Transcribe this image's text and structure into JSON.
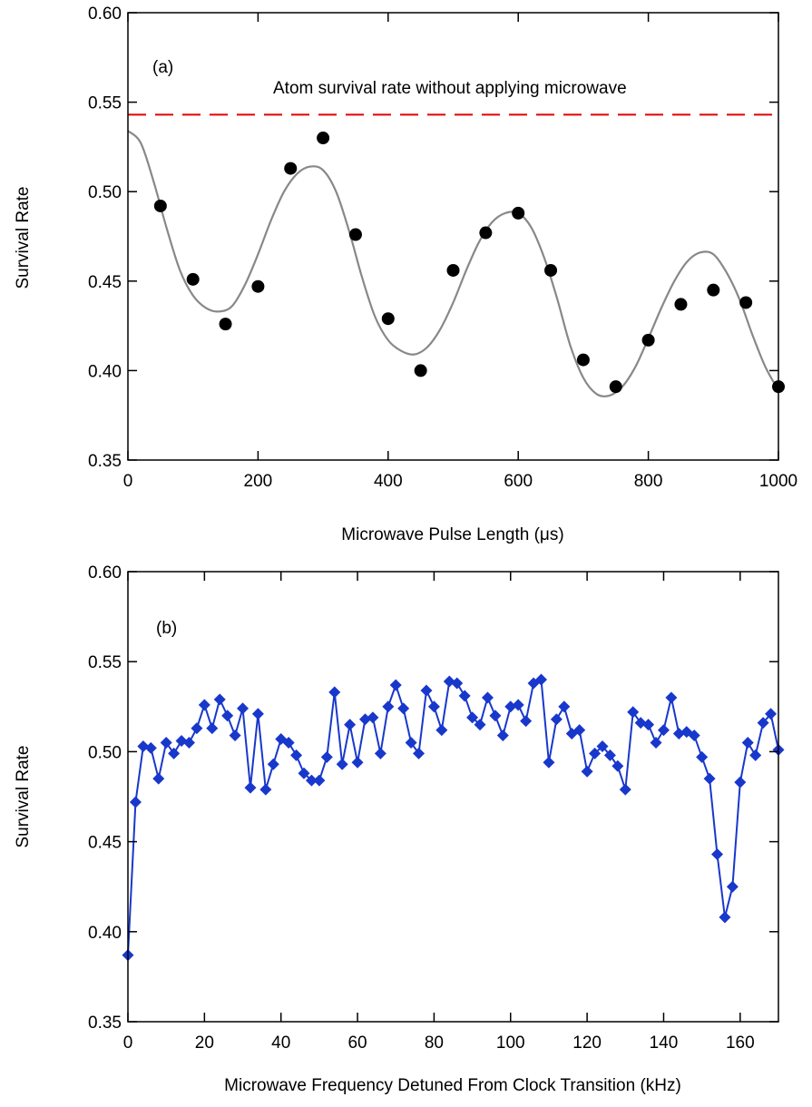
{
  "chart_data": [
    {
      "type": "scatter",
      "panel_label": "(a)",
      "xlabel": "Microwave Pulse Length (μs)",
      "ylabel": "Survival Rate",
      "xlim": [
        0,
        1000
      ],
      "ylim": [
        0.35,
        0.6
      ],
      "x_ticks": [
        "0",
        "200",
        "400",
        "600",
        "800",
        "1000"
      ],
      "y_ticks": [
        "0.35",
        "0.40",
        "0.45",
        "0.50",
        "0.55",
        "0.60"
      ],
      "grid": false,
      "marker_color": "#000000",
      "fit_color": "#888888",
      "reference_color": "#e00000",
      "reference_line": {
        "y": 0.543,
        "label": "Atom survival rate without applying microwave"
      },
      "series": [
        {
          "marker": "circle",
          "x": [
            50,
            100,
            150,
            200,
            250,
            300,
            350,
            400,
            450,
            500,
            550,
            600,
            650,
            700,
            750,
            800,
            850,
            900,
            950,
            1000
          ],
          "y": [
            0.492,
            0.451,
            0.426,
            0.447,
            0.513,
            0.53,
            0.476,
            0.429,
            0.4,
            0.456,
            0.477,
            0.488,
            0.456,
            0.406,
            0.391,
            0.417,
            0.437,
            0.445,
            0.438,
            0.391
          ]
        }
      ],
      "fit_curve": {
        "style": "solid",
        "x": [
          0,
          20,
          40,
          60,
          80,
          100,
          120,
          140,
          160,
          180,
          200,
          220,
          240,
          260,
          280,
          300,
          320,
          340,
          360,
          380,
          400,
          420,
          440,
          460,
          480,
          500,
          520,
          540,
          560,
          580,
          600,
          620,
          640,
          660,
          680,
          700,
          720,
          740,
          760,
          780,
          800,
          820,
          840,
          860,
          880,
          900,
          920,
          940,
          960,
          980,
          1000
        ],
        "y": [
          0.534,
          0.527,
          0.505,
          0.479,
          0.456,
          0.442,
          0.435,
          0.433,
          0.436,
          0.448,
          0.465,
          0.484,
          0.5,
          0.51,
          0.514,
          0.512,
          0.5,
          0.478,
          0.452,
          0.43,
          0.417,
          0.411,
          0.409,
          0.413,
          0.423,
          0.438,
          0.456,
          0.472,
          0.483,
          0.488,
          0.488,
          0.48,
          0.463,
          0.44,
          0.414,
          0.396,
          0.387,
          0.386,
          0.391,
          0.402,
          0.418,
          0.435,
          0.45,
          0.461,
          0.466,
          0.465,
          0.455,
          0.44,
          0.42,
          0.402,
          0.389
        ]
      }
    },
    {
      "type": "line",
      "panel_label": "(b)",
      "xlabel": "Microwave Frequency Detuned From Clock Transition (kHz)",
      "ylabel": "Survival Rate",
      "xlim": [
        0,
        170
      ],
      "ylim": [
        0.35,
        0.6
      ],
      "x_ticks": [
        "0",
        "20",
        "40",
        "60",
        "80",
        "100",
        "120",
        "140",
        "160"
      ],
      "y_ticks": [
        "0.35",
        "0.40",
        "0.45",
        "0.50",
        "0.55",
        "0.60"
      ],
      "grid": false,
      "line_color": "#1838cc",
      "series": [
        {
          "marker": "diamond",
          "x": [
            0,
            2,
            4,
            6,
            8,
            10,
            12,
            14,
            16,
            18,
            20,
            22,
            24,
            26,
            28,
            30,
            32,
            34,
            36,
            38,
            40,
            42,
            44,
            46,
            48,
            50,
            52,
            54,
            56,
            58,
            60,
            62,
            64,
            66,
            68,
            70,
            72,
            74,
            76,
            78,
            80,
            82,
            84,
            86,
            88,
            90,
            92,
            94,
            96,
            98,
            100,
            102,
            104,
            106,
            108,
            110,
            112,
            114,
            116,
            118,
            120,
            122,
            124,
            126,
            128,
            130,
            132,
            134,
            136,
            138,
            140,
            142,
            144,
            146,
            148,
            150,
            152,
            154,
            156,
            158,
            160,
            162,
            164,
            166,
            168,
            170
          ],
          "y": [
            0.387,
            0.472,
            0.503,
            0.502,
            0.485,
            0.505,
            0.499,
            0.506,
            0.505,
            0.513,
            0.526,
            0.513,
            0.529,
            0.52,
            0.509,
            0.524,
            0.48,
            0.521,
            0.479,
            0.493,
            0.507,
            0.505,
            0.498,
            0.488,
            0.484,
            0.484,
            0.497,
            0.533,
            0.493,
            0.515,
            0.494,
            0.518,
            0.519,
            0.499,
            0.525,
            0.537,
            0.524,
            0.505,
            0.499,
            0.534,
            0.525,
            0.512,
            0.539,
            0.538,
            0.531,
            0.519,
            0.515,
            0.53,
            0.52,
            0.509,
            0.525,
            0.526,
            0.517,
            0.538,
            0.54,
            0.494,
            0.518,
            0.525,
            0.51,
            0.512,
            0.489,
            0.499,
            0.503,
            0.498,
            0.492,
            0.479,
            0.522,
            0.516,
            0.515,
            0.505,
            0.512,
            0.53,
            0.51,
            0.511,
            0.509,
            0.497,
            0.485,
            0.443,
            0.408,
            0.425,
            0.483,
            0.505,
            0.498,
            0.516,
            0.521,
            0.501
          ]
        }
      ]
    }
  ]
}
